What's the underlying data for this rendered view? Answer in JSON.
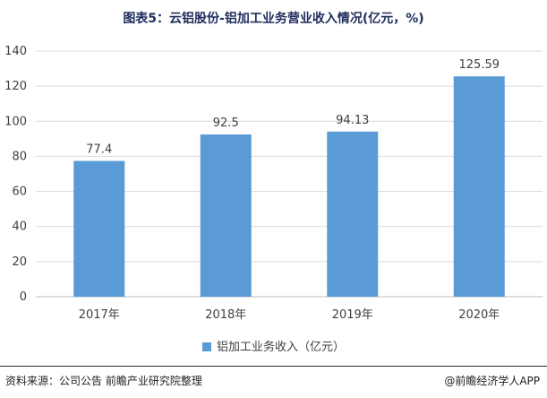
{
  "title": "图表5：云铝股份-铝加工业务营业收入情况(亿元，%)",
  "footer": {
    "source": "资料来源：公司公告 前瞻产业研究院整理",
    "credit": "@前瞻经济学人APP"
  },
  "colors": {
    "bar": "#5b9bd5",
    "grid": "#d9d9d9",
    "axis": "#bfbfbf",
    "title": "#1f2d5c"
  },
  "chart_data": {
    "type": "bar",
    "title": "图表5：云铝股份-铝加工业务营业收入情况(亿元，%)",
    "categories": [
      "2017年",
      "2018年",
      "2019年",
      "2020年"
    ],
    "series": [
      {
        "name": "铝加工业务收入（亿元）",
        "values": [
          77.4,
          92.5,
          94.13,
          125.59
        ]
      }
    ],
    "data_labels": [
      "77.4",
      "92.5",
      "94.13",
      "125.59"
    ],
    "ylim": [
      0,
      140
    ],
    "yticks": [
      0,
      20,
      40,
      60,
      80,
      100,
      120,
      140
    ],
    "grid": true,
    "legend_position": "bottom",
    "xlabel": "",
    "ylabel": ""
  }
}
